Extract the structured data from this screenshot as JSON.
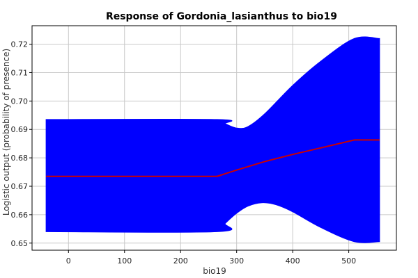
{
  "chart_data": {
    "type": "area",
    "title": "Response of Gordonia_lasianthus to bio19",
    "xlabel": "bio19",
    "ylabel": "Logistic output (probability of presence)",
    "xlim": [
      -65,
      585
    ],
    "ylim": [
      0.6475,
      0.7265
    ],
    "x_ticks": [
      0,
      100,
      200,
      300,
      400,
      500
    ],
    "y_ticks": [
      0.65,
      0.66,
      0.67,
      0.68,
      0.69,
      0.7,
      0.71,
      0.72
    ],
    "grid": true,
    "colors": {
      "band": "#0000ff",
      "line": "#cc0000",
      "grid": "#c8c8c8"
    },
    "series": [
      {
        "role": "mean",
        "x": [
          -40,
          265,
          300,
          350,
          400,
          450,
          510,
          555
        ],
        "y": [
          0.6735,
          0.6735,
          0.6757,
          0.6787,
          0.6812,
          0.6835,
          0.6863,
          0.6863
        ]
      },
      {
        "role": "upper",
        "x": [
          -40,
          265,
          280,
          300,
          320,
          350,
          400,
          450,
          510,
          555
        ],
        "y": [
          0.6935,
          0.6935,
          0.692,
          0.6905,
          0.691,
          0.6955,
          0.7055,
          0.714,
          0.722,
          0.722
        ]
      },
      {
        "role": "lower",
        "x": [
          -40,
          265,
          280,
          300,
          320,
          345,
          370,
          400,
          450,
          510,
          555
        ],
        "y": [
          0.654,
          0.654,
          0.657,
          0.6605,
          0.663,
          0.6642,
          0.6635,
          0.661,
          0.6555,
          0.6505,
          0.6505
        ]
      }
    ]
  }
}
